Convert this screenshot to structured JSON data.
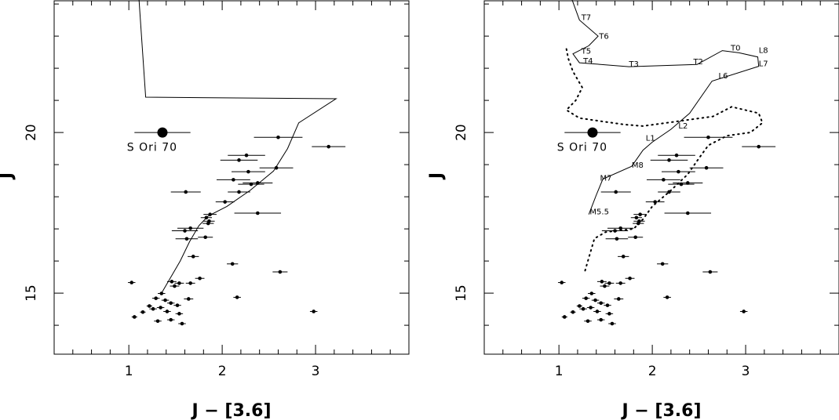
{
  "chart_data": [
    {
      "type": "scatter",
      "title": "",
      "xlabel": "J − [3.6]",
      "ylabel": "J",
      "xlim": [
        0.2,
        4.0
      ],
      "ylim": [
        24.1,
        13.1
      ],
      "x_ticks": [
        1,
        2,
        3
      ],
      "y_ticks": [
        15,
        20
      ],
      "grid": false,
      "series": [
        {
          "points": [
            {
              "x": 1.06,
              "y": 14.26,
              "xerr": 0.03
            },
            {
              "x": 1.15,
              "y": 14.41,
              "xerr": 0.03
            },
            {
              "x": 1.22,
              "y": 14.6,
              "xerr": 0.03
            },
            {
              "x": 1.29,
              "y": 14.84,
              "xerr": 0.04
            },
            {
              "x": 1.39,
              "y": 14.78,
              "xerr": 0.04
            },
            {
              "x": 1.31,
              "y": 14.13,
              "xerr": 0.04
            },
            {
              "x": 1.45,
              "y": 14.17,
              "xerr": 0.04
            },
            {
              "x": 1.57,
              "y": 14.05,
              "xerr": 0.04
            },
            {
              "x": 1.41,
              "y": 14.43,
              "xerr": 0.04
            },
            {
              "x": 1.54,
              "y": 14.36,
              "xerr": 0.04
            },
            {
              "x": 1.26,
              "y": 14.51,
              "xerr": 0.04
            },
            {
              "x": 1.34,
              "y": 14.55,
              "xerr": 0.04
            },
            {
              "x": 1.45,
              "y": 14.69,
              "xerr": 0.04
            },
            {
              "x": 1.52,
              "y": 14.62,
              "xerr": 0.04
            },
            {
              "x": 1.35,
              "y": 14.99,
              "xerr": 0.04
            },
            {
              "x": 1.03,
              "y": 15.33,
              "xerr": 0.04
            },
            {
              "x": 1.49,
              "y": 15.22,
              "xerr": 0.05
            },
            {
              "x": 1.54,
              "y": 15.31,
              "xerr": 0.05
            },
            {
              "x": 1.46,
              "y": 15.36,
              "xerr": 0.05
            },
            {
              "x": 1.64,
              "y": 14.82,
              "xerr": 0.05
            },
            {
              "x": 1.66,
              "y": 15.31,
              "xerr": 0.05
            },
            {
              "x": 1.76,
              "y": 15.46,
              "xerr": 0.05
            },
            {
              "x": 2.16,
              "y": 14.87,
              "xerr": 0.04
            },
            {
              "x": 2.98,
              "y": 14.43,
              "xerr": 0.04
            },
            {
              "x": 2.62,
              "y": 15.66,
              "xerr": 0.08
            },
            {
              "x": 2.11,
              "y": 15.91,
              "xerr": 0.06
            },
            {
              "x": 1.69,
              "y": 16.14,
              "xerr": 0.06
            },
            {
              "x": 1.62,
              "y": 16.69,
              "xerr": 0.12
            },
            {
              "x": 1.82,
              "y": 16.74,
              "xerr": 0.08
            },
            {
              "x": 1.6,
              "y": 16.94,
              "xerr": 0.14
            },
            {
              "x": 1.66,
              "y": 17.02,
              "xerr": 0.14
            },
            {
              "x": 1.85,
              "y": 17.17,
              "xerr": 0.06
            },
            {
              "x": 1.86,
              "y": 17.24,
              "xerr": 0.06
            },
            {
              "x": 1.83,
              "y": 17.35,
              "xerr": 0.06
            },
            {
              "x": 1.87,
              "y": 17.45,
              "xerr": 0.07
            },
            {
              "x": 2.38,
              "y": 17.49,
              "xerr": 0.25
            },
            {
              "x": 2.03,
              "y": 17.84,
              "xerr": 0.1
            },
            {
              "x": 2.18,
              "y": 18.15,
              "xerr": 0.12
            },
            {
              "x": 1.61,
              "y": 18.15,
              "xerr": 0.16
            },
            {
              "x": 2.31,
              "y": 18.39,
              "xerr": 0.14
            },
            {
              "x": 2.38,
              "y": 18.43,
              "xerr": 0.16
            },
            {
              "x": 2.12,
              "y": 18.53,
              "xerr": 0.18
            },
            {
              "x": 2.28,
              "y": 18.78,
              "xerr": 0.18
            },
            {
              "x": 2.58,
              "y": 18.9,
              "xerr": 0.18
            },
            {
              "x": 2.18,
              "y": 19.14,
              "xerr": 0.2
            },
            {
              "x": 2.26,
              "y": 19.29,
              "xerr": 0.2
            },
            {
              "x": 3.14,
              "y": 19.56,
              "xerr": 0.18
            },
            {
              "x": 2.6,
              "y": 19.85,
              "xerr": 0.26
            }
          ]
        },
        {
          "points": [
            {
              "x": 1.36,
              "y": 20.0,
              "xerr": 0.3
            }
          ]
        }
      ],
      "annotations": [
        {
          "text": "S Ori 70",
          "x": 1.25,
          "y": 19.43
        }
      ],
      "lines": [
        {
          "style": "solid",
          "points": [
            [
              1.35,
              15.0
            ],
            [
              1.45,
              15.5
            ],
            [
              1.55,
              16.0
            ],
            [
              1.65,
              16.6
            ],
            [
              1.75,
              17.1
            ],
            [
              1.85,
              17.4
            ],
            [
              2.05,
              17.7
            ],
            [
              2.3,
              18.2
            ],
            [
              2.55,
              18.8
            ],
            [
              2.7,
              19.5
            ],
            [
              2.82,
              20.3
            ],
            [
              3.22,
              21.05
            ],
            [
              1.18,
              21.1
            ],
            [
              1.1,
              24.5
            ]
          ]
        }
      ]
    },
    {
      "type": "scatter",
      "title": "",
      "xlabel": "J − [3.6]",
      "ylabel": "J",
      "xlim": [
        0.2,
        4.0
      ],
      "ylim": [
        24.1,
        13.1
      ],
      "x_ticks": [
        1,
        2,
        3
      ],
      "y_ticks": [
        15,
        20
      ],
      "grid": false,
      "series": [
        {
          "points": [
            {
              "x": 1.06,
              "y": 14.26,
              "xerr": 0.03
            },
            {
              "x": 1.15,
              "y": 14.41,
              "xerr": 0.03
            },
            {
              "x": 1.22,
              "y": 14.6,
              "xerr": 0.03
            },
            {
              "x": 1.29,
              "y": 14.84,
              "xerr": 0.04
            },
            {
              "x": 1.39,
              "y": 14.78,
              "xerr": 0.04
            },
            {
              "x": 1.31,
              "y": 14.13,
              "xerr": 0.04
            },
            {
              "x": 1.45,
              "y": 14.17,
              "xerr": 0.04
            },
            {
              "x": 1.57,
              "y": 14.05,
              "xerr": 0.04
            },
            {
              "x": 1.41,
              "y": 14.43,
              "xerr": 0.04
            },
            {
              "x": 1.54,
              "y": 14.36,
              "xerr": 0.04
            },
            {
              "x": 1.26,
              "y": 14.51,
              "xerr": 0.04
            },
            {
              "x": 1.34,
              "y": 14.55,
              "xerr": 0.04
            },
            {
              "x": 1.45,
              "y": 14.69,
              "xerr": 0.04
            },
            {
              "x": 1.52,
              "y": 14.62,
              "xerr": 0.04
            },
            {
              "x": 1.35,
              "y": 14.99,
              "xerr": 0.04
            },
            {
              "x": 1.03,
              "y": 15.33,
              "xerr": 0.04
            },
            {
              "x": 1.49,
              "y": 15.22,
              "xerr": 0.05
            },
            {
              "x": 1.54,
              "y": 15.31,
              "xerr": 0.05
            },
            {
              "x": 1.46,
              "y": 15.36,
              "xerr": 0.05
            },
            {
              "x": 1.64,
              "y": 14.82,
              "xerr": 0.05
            },
            {
              "x": 1.66,
              "y": 15.31,
              "xerr": 0.05
            },
            {
              "x": 1.76,
              "y": 15.46,
              "xerr": 0.05
            },
            {
              "x": 2.16,
              "y": 14.87,
              "xerr": 0.04
            },
            {
              "x": 2.98,
              "y": 14.43,
              "xerr": 0.04
            },
            {
              "x": 2.62,
              "y": 15.66,
              "xerr": 0.08
            },
            {
              "x": 2.11,
              "y": 15.91,
              "xerr": 0.06
            },
            {
              "x": 1.69,
              "y": 16.14,
              "xerr": 0.06
            },
            {
              "x": 1.62,
              "y": 16.69,
              "xerr": 0.12
            },
            {
              "x": 1.82,
              "y": 16.74,
              "xerr": 0.08
            },
            {
              "x": 1.6,
              "y": 16.94,
              "xerr": 0.14
            },
            {
              "x": 1.66,
              "y": 17.02,
              "xerr": 0.14
            },
            {
              "x": 1.85,
              "y": 17.17,
              "xerr": 0.06
            },
            {
              "x": 1.86,
              "y": 17.24,
              "xerr": 0.06
            },
            {
              "x": 1.83,
              "y": 17.35,
              "xerr": 0.06
            },
            {
              "x": 1.87,
              "y": 17.45,
              "xerr": 0.07
            },
            {
              "x": 2.38,
              "y": 17.49,
              "xerr": 0.25
            },
            {
              "x": 2.03,
              "y": 17.84,
              "xerr": 0.1
            },
            {
              "x": 2.18,
              "y": 18.15,
              "xerr": 0.12
            },
            {
              "x": 1.61,
              "y": 18.15,
              "xerr": 0.16
            },
            {
              "x": 2.31,
              "y": 18.39,
              "xerr": 0.14
            },
            {
              "x": 2.38,
              "y": 18.43,
              "xerr": 0.16
            },
            {
              "x": 2.12,
              "y": 18.53,
              "xerr": 0.18
            },
            {
              "x": 2.28,
              "y": 18.78,
              "xerr": 0.18
            },
            {
              "x": 2.58,
              "y": 18.9,
              "xerr": 0.18
            },
            {
              "x": 2.18,
              "y": 19.14,
              "xerr": 0.2
            },
            {
              "x": 2.26,
              "y": 19.29,
              "xerr": 0.2
            },
            {
              "x": 3.14,
              "y": 19.56,
              "xerr": 0.18
            },
            {
              "x": 2.6,
              "y": 19.85,
              "xerr": 0.26
            }
          ]
        },
        {
          "points": [
            {
              "x": 1.36,
              "y": 20.0,
              "xerr": 0.3
            }
          ]
        }
      ],
      "annotations": [
        {
          "text": "S Ori 70",
          "x": 1.25,
          "y": 19.43
        },
        {
          "text": "M5.5",
          "x": 1.33,
          "y": 17.45
        },
        {
          "text": "M7",
          "x": 1.44,
          "y": 18.5
        },
        {
          "text": "M8",
          "x": 1.78,
          "y": 18.9
        },
        {
          "text": "L1",
          "x": 1.93,
          "y": 19.75
        },
        {
          "text": "L2",
          "x": 2.28,
          "y": 20.12
        },
        {
          "text": "L6",
          "x": 2.71,
          "y": 21.68
        },
        {
          "text": "L7",
          "x": 3.14,
          "y": 22.06
        },
        {
          "text": "L8",
          "x": 3.14,
          "y": 22.48
        },
        {
          "text": "T0",
          "x": 2.84,
          "y": 22.55
        },
        {
          "text": "T2",
          "x": 2.44,
          "y": 22.12
        },
        {
          "text": "T3",
          "x": 1.75,
          "y": 22.05
        },
        {
          "text": "T4",
          "x": 1.26,
          "y": 22.15
        },
        {
          "text": "T5",
          "x": 1.24,
          "y": 22.45
        },
        {
          "text": "T6",
          "x": 1.43,
          "y": 22.92
        },
        {
          "text": "T7",
          "x": 1.24,
          "y": 23.5
        }
      ],
      "lines": [
        {
          "style": "solid",
          "points": [
            [
              1.32,
              17.45
            ],
            [
              1.4,
              18.05
            ],
            [
              1.47,
              18.55
            ],
            [
              1.78,
              18.95
            ],
            [
              1.9,
              19.45
            ],
            [
              2.0,
              19.7
            ],
            [
              2.2,
              20.1
            ],
            [
              2.4,
              20.6
            ],
            [
              2.64,
              21.6
            ],
            [
              3.14,
              22.06
            ],
            [
              3.13,
              22.35
            ],
            [
              2.93,
              22.48
            ],
            [
              2.75,
              22.55
            ],
            [
              2.48,
              22.12
            ],
            [
              1.75,
              22.05
            ],
            [
              1.22,
              22.17
            ],
            [
              1.15,
              22.45
            ],
            [
              1.32,
              22.7
            ],
            [
              1.42,
              23.0
            ],
            [
              1.22,
              23.5
            ],
            [
              1.12,
              24.3
            ]
          ]
        },
        {
          "style": "dotted",
          "points": [
            [
              1.28,
              15.7
            ],
            [
              1.33,
              16.2
            ],
            [
              1.38,
              16.7
            ],
            [
              1.5,
              16.9
            ],
            [
              1.8,
              17.0
            ],
            [
              1.9,
              17.3
            ],
            [
              2.0,
              17.7
            ],
            [
              2.2,
              18.2
            ],
            [
              2.38,
              18.7
            ],
            [
              2.5,
              19.2
            ],
            [
              2.6,
              19.6
            ],
            [
              2.8,
              19.9
            ],
            [
              3.05,
              20.0
            ],
            [
              3.18,
              20.3
            ],
            [
              3.14,
              20.6
            ],
            [
              2.85,
              20.8
            ],
            [
              2.65,
              20.5
            ],
            [
              2.4,
              20.4
            ],
            [
              2.15,
              20.3
            ],
            [
              1.9,
              20.2
            ],
            [
              1.7,
              20.25
            ],
            [
              1.45,
              20.35
            ],
            [
              1.22,
              20.45
            ],
            [
              1.08,
              20.7
            ],
            [
              1.18,
              21.0
            ],
            [
              1.25,
              21.4
            ],
            [
              1.15,
              21.9
            ],
            [
              1.1,
              22.3
            ],
            [
              1.08,
              22.6
            ]
          ]
        }
      ]
    }
  ]
}
